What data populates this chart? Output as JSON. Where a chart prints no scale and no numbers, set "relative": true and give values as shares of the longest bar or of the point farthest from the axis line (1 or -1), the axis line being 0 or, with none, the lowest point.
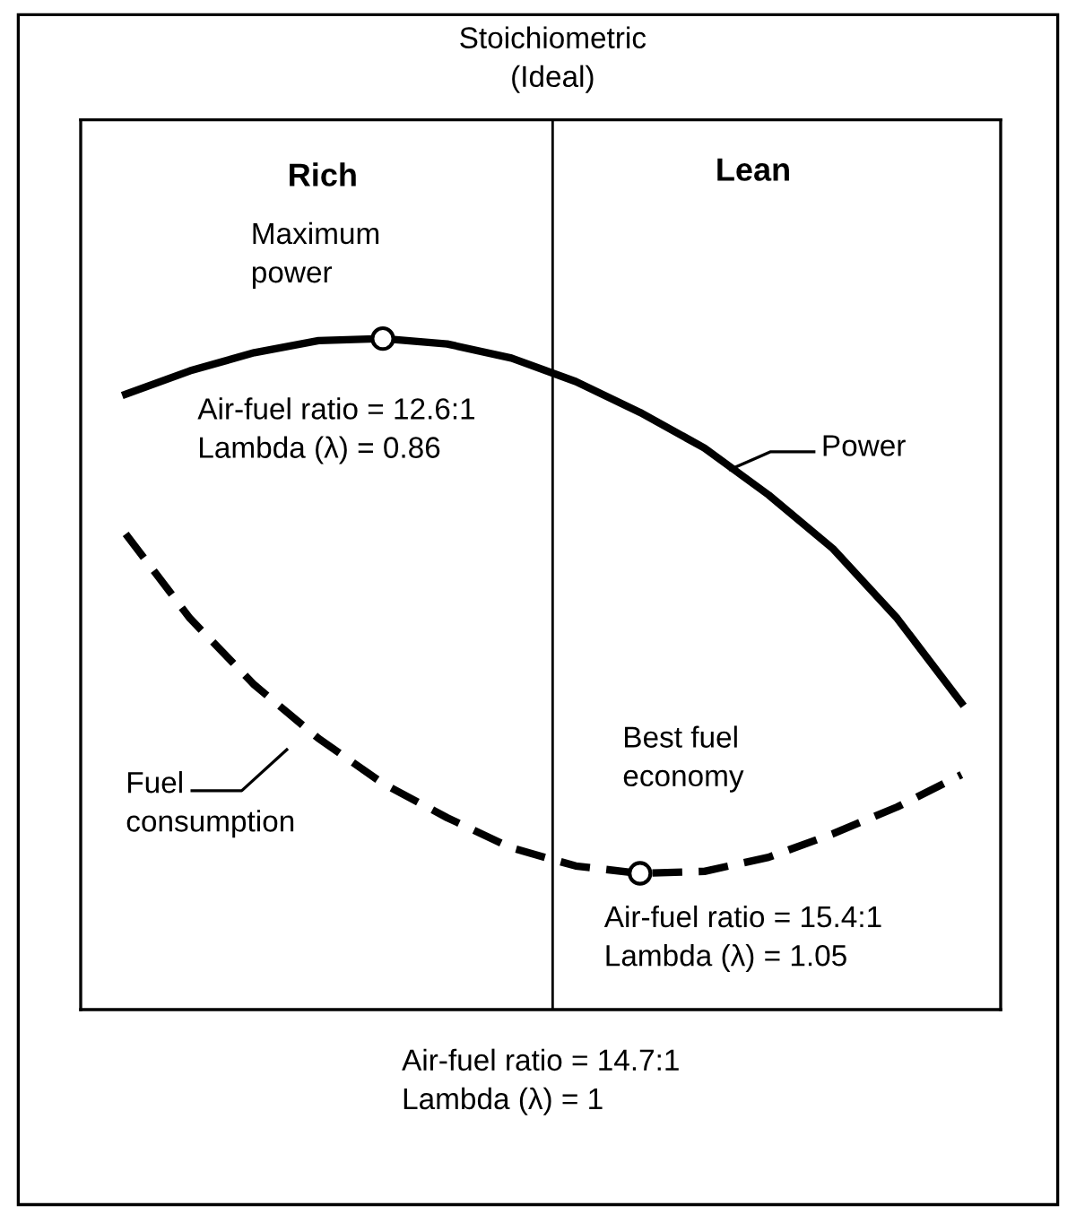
{
  "chart_data": {
    "type": "line",
    "relative": true,
    "categories": [
      null,
      null,
      null,
      null,
      null,
      null,
      null,
      null,
      null,
      null,
      null,
      null,
      null,
      null
    ],
    "series": [
      {
        "name": "Power",
        "color": "#000000",
        "line_style": "solid",
        "values": [
          0.917,
          0.952,
          0.979,
          0.997,
          1,
          0.992,
          0.971,
          0.936,
          0.89,
          0.837,
          0.767,
          0.687,
          0.583,
          0.457
        ]
      },
      {
        "name": "Fuel consumption",
        "color": "#000000",
        "line_style": "dashed",
        "values": [
          0.709,
          0.583,
          0.484,
          0.404,
          0.337,
          0.286,
          0.241,
          0.214,
          0.203,
          0.206,
          0.227,
          0.262,
          0.302,
          0.35
        ]
      }
    ],
    "annotations": [
      "Stoichiometric\n(Ideal)",
      "Rich",
      "Lean",
      "Maximum\npower",
      "Air-fuel ratio = 12.6:1\nLambda (λ) = 0.86",
      "Best fuel\neconomy",
      "Air-fuel ratio = 15.4:1\nLambda (λ) = 1.05",
      "Air-fuel ratio = 14.7:1\nLambda (λ) = 1"
    ]
  }
}
